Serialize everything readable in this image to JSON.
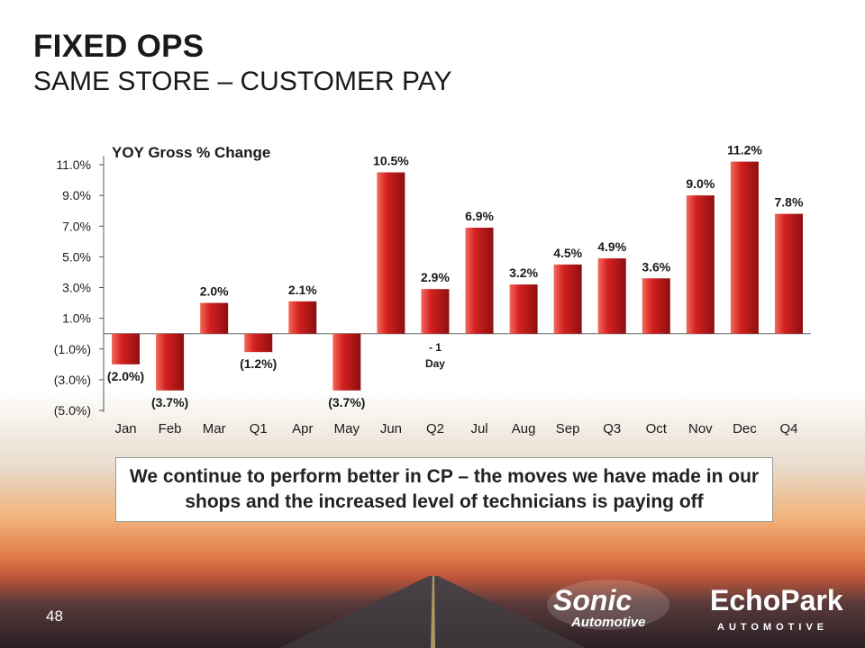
{
  "slide": {
    "title": "FIXED OPS",
    "subtitle": "SAME STORE – CUSTOMER PAY",
    "callout": "We continue to perform better in CP – the moves we have made in our shops and the increased level of technicians is paying off",
    "page_number": "48"
  },
  "logos": {
    "sonic": {
      "word": "Sonic",
      "sub": "Automotive"
    },
    "echopark": {
      "word": "EchoPark",
      "sub": "AUTOMOTIVE"
    }
  },
  "colors": {
    "bar": "#d42020",
    "bar_dark": "#8e0f0f",
    "bar_light": "#f26a5a",
    "text": "#1a1a1a"
  },
  "chart_data": {
    "type": "bar",
    "title": "YOY Gross % Change",
    "xlabel": "",
    "ylabel": "",
    "ylim": [
      -5,
      12
    ],
    "y_ticks": [
      11,
      9,
      7,
      5,
      3,
      1,
      -1,
      -3,
      -5
    ],
    "y_tick_labels": [
      "11.0%",
      "9.0%",
      "7.0%",
      "5.0%",
      "3.0%",
      "1.0%",
      "(1.0%)",
      "(3.0%)",
      "(5.0%)"
    ],
    "categories": [
      "Jan",
      "Feb",
      "Mar",
      "Q1",
      "Apr",
      "May",
      "Jun",
      "Q2",
      "Jul",
      "Aug",
      "Sep",
      "Q3",
      "Oct",
      "Nov",
      "Dec",
      "Q4"
    ],
    "values": [
      -2.0,
      -3.7,
      2.0,
      -1.2,
      2.1,
      -3.7,
      10.5,
      2.9,
      6.9,
      3.2,
      4.5,
      4.9,
      3.6,
      9.0,
      11.2,
      7.8
    ],
    "data_labels": [
      "(2.0%)",
      "(3.7%)",
      "2.0%",
      "(1.2%)",
      "2.1%",
      "(3.7%)",
      "10.5%",
      "2.9%",
      "6.9%",
      "3.2%",
      "4.5%",
      "4.9%",
      "3.6%",
      "9.0%",
      "11.2%",
      "7.8%"
    ],
    "annotation": {
      "category": "Q2",
      "lines": [
        "- 1",
        "Day"
      ]
    },
    "grid": false,
    "legend": "none"
  }
}
